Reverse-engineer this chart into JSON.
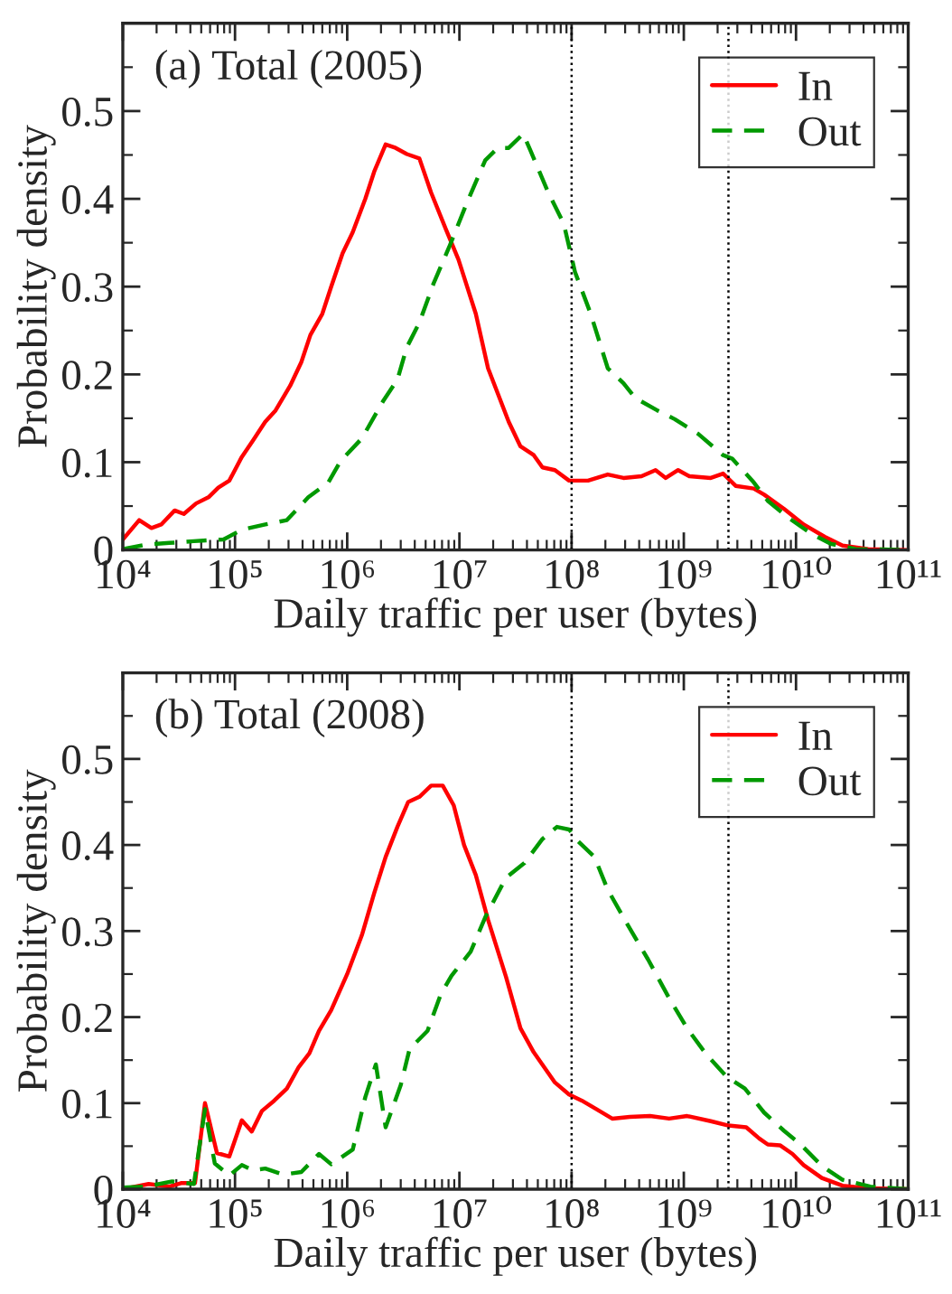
{
  "chart_data": [
    {
      "type": "line",
      "title": "(a) Total (2005)",
      "xlabel": "Daily traffic per user (bytes)",
      "ylabel": "Probability density",
      "log": "x",
      "grid": false,
      "legend": "top right",
      "xlim": [
        10000.0,
        100000000000.0
      ],
      "ylim": [
        0,
        0.6
      ],
      "xticks": [
        {
          "value": 10000.0,
          "label": "10⁴"
        },
        {
          "value": 100000.0,
          "label": "10⁵"
        },
        {
          "value": 1000000.0,
          "label": "10⁶"
        },
        {
          "value": 10000000.0,
          "label": "10⁷"
        },
        {
          "value": 100000000.0,
          "label": "10⁸"
        },
        {
          "value": 1000000000.0,
          "label": "10⁹"
        },
        {
          "value": 10000000000.0,
          "label": "10¹⁰"
        },
        {
          "value": 100000000000.0,
          "label": "10¹¹"
        }
      ],
      "yticks": [
        0,
        0.1,
        0.2,
        0.3,
        0.4,
        0.5
      ],
      "ref_lines": [
        {
          "axis": "x",
          "value": 100000000.0,
          "line_style": "dotted",
          "color": "#000000"
        },
        {
          "axis": "x",
          "value": 2500000000.0,
          "line_style": "dotted",
          "color": "#000000"
        }
      ],
      "series": [
        {
          "name": "In",
          "color": "#ff0000",
          "line_style": "solid",
          "x": [
            10000.0,
            14000.0,
            18000.0,
            22000.0,
            29000.0,
            35000.0,
            45000.0,
            58000.0,
            71000.0,
            89000.0,
            115000.0,
            145000.0,
            186000.0,
            230000.0,
            310000.0,
            390000.0,
            470000.0,
            600000.0,
            720000.0,
            910000.0,
            1120000.0,
            1450000.0,
            1740000.0,
            2200000.0,
            2700000.0,
            3400000.0,
            4400000.0,
            5600000.0,
            7600000.0,
            9800000.0,
            14000000.0,
            18000000.0,
            27500000.0,
            35000000.0,
            46000000.0,
            55000000.0,
            71000000.0,
            95000000.0,
            140000000.0,
            210000000.0,
            290000000.0,
            420000000.0,
            560000000.0,
            690000000.0,
            890000000.0,
            1120000000.0,
            1740000000.0,
            2240000000.0,
            2900000000.0,
            4200000000.0,
            5200000000.0,
            7800000000.0,
            11700000000.0,
            18000000000.0,
            26000000000.0,
            44000000000.0,
            100000000000.0
          ],
          "values": [
            0.012,
            0.034,
            0.025,
            0.029,
            0.045,
            0.041,
            0.053,
            0.06,
            0.071,
            0.079,
            0.106,
            0.125,
            0.146,
            0.159,
            0.187,
            0.214,
            0.245,
            0.269,
            0.3,
            0.338,
            0.362,
            0.4,
            0.431,
            0.462,
            0.458,
            0.451,
            0.446,
            0.407,
            0.365,
            0.331,
            0.269,
            0.207,
            0.146,
            0.118,
            0.108,
            0.094,
            0.091,
            0.079,
            0.079,
            0.086,
            0.082,
            0.084,
            0.091,
            0.082,
            0.091,
            0.084,
            0.082,
            0.087,
            0.073,
            0.07,
            0.063,
            0.047,
            0.029,
            0.015,
            0.005,
            0.001,
            0
          ]
        },
        {
          "name": "Out",
          "color": "#009900",
          "line_style": "dashed",
          "x": [
            10000.0,
            16000.0,
            26000.0,
            43000.0,
            79000.0,
            115000.0,
            186000.0,
            290000.0,
            450000.0,
            680000.0,
            870000.0,
            1350000.0,
            2100000.0,
            2800000.0,
            3400000.0,
            4400000.0,
            5900000.0,
            8100000.0,
            11700000.0,
            17000000.0,
            22000000.0,
            27500000.0,
            37000000.0,
            43000000.0,
            62000000.0,
            85000000.0,
            107000000.0,
            148000000.0,
            210000000.0,
            290000000.0,
            370000000.0,
            580000000.0,
            830000000.0,
            1350000000.0,
            2240000000.0,
            2700000000.0,
            4200000000.0,
            5600000000.0,
            8700000000.0,
            13500000000.0,
            20400000000.0,
            34000000000.0,
            100000000000.0
          ],
          "values": [
            0.001,
            0.006,
            0.008,
            0.01,
            0.012,
            0.023,
            0.029,
            0.034,
            0.06,
            0.077,
            0.101,
            0.127,
            0.17,
            0.194,
            0.231,
            0.259,
            0.304,
            0.345,
            0.396,
            0.444,
            0.458,
            0.458,
            0.474,
            0.455,
            0.407,
            0.372,
            0.317,
            0.269,
            0.207,
            0.19,
            0.173,
            0.159,
            0.149,
            0.132,
            0.108,
            0.104,
            0.077,
            0.056,
            0.036,
            0.019,
            0.007,
            0.001,
            0
          ]
        }
      ]
    },
    {
      "type": "line",
      "title": "(b) Total (2008)",
      "xlabel": "Daily traffic per user (bytes)",
      "ylabel": "Probability density",
      "log": "x",
      "grid": false,
      "legend": "top right",
      "xlim": [
        10000.0,
        100000000000.0
      ],
      "ylim": [
        0,
        0.6
      ],
      "xticks": [
        {
          "value": 10000.0,
          "label": "10⁴"
        },
        {
          "value": 100000.0,
          "label": "10⁵"
        },
        {
          "value": 1000000.0,
          "label": "10⁶"
        },
        {
          "value": 10000000.0,
          "label": "10⁷"
        },
        {
          "value": 100000000.0,
          "label": "10⁸"
        },
        {
          "value": 1000000000.0,
          "label": "10⁹"
        },
        {
          "value": 10000000000.0,
          "label": "10¹⁰"
        },
        {
          "value": 100000000000.0,
          "label": "10¹¹"
        }
      ],
      "yticks": [
        0,
        0.1,
        0.2,
        0.3,
        0.4,
        0.5
      ],
      "ref_lines": [
        {
          "axis": "x",
          "value": 100000000.0,
          "line_style": "dotted",
          "color": "#000000"
        },
        {
          "axis": "x",
          "value": 2500000000.0,
          "line_style": "dotted",
          "color": "#000000"
        }
      ],
      "series": [
        {
          "name": "In",
          "color": "#ff0000",
          "line_style": "solid",
          "x": [
            10000.0,
            17000.0,
            26000.0,
            33000.0,
            44000.0,
            54000.0,
            69000.0,
            89000.0,
            115000.0,
            141000.0,
            174000.0,
            224000.0,
            290000.0,
            370000.0,
            460000.0,
            560000.0,
            720000.0,
            1000000.0,
            1350000.0,
            1740000.0,
            2200000.0,
            2800000.0,
            3500000.0,
            4400000.0,
            5600000.0,
            7100000.0,
            8900000.0,
            11000000.0,
            14000000.0,
            18000000.0,
            26000000.0,
            35000000.0,
            46000000.0,
            71000000.0,
            95000000.0,
            123000000.0,
            166000000.0,
            230000000.0,
            330000000.0,
            500000000.0,
            740000000.0,
            1070000000.0,
            1740000000.0,
            2500000000.0,
            3600000000.0,
            4700000000.0,
            5600000000.0,
            7200000000.0,
            9300000000.0,
            11700000000.0,
            17000000000.0,
            26000000000.0,
            44000000000.0,
            100000000000.0
          ],
          "values": [
            0,
            0.006,
            0.003,
            0.007,
            0.007,
            0.1,
            0.042,
            0.038,
            0.08,
            0.067,
            0.091,
            0.103,
            0.117,
            0.142,
            0.158,
            0.184,
            0.208,
            0.25,
            0.295,
            0.344,
            0.386,
            0.421,
            0.45,
            0.456,
            0.469,
            0.469,
            0.446,
            0.4,
            0.365,
            0.313,
            0.247,
            0.187,
            0.159,
            0.124,
            0.11,
            0.103,
            0.093,
            0.082,
            0.084,
            0.085,
            0.082,
            0.085,
            0.079,
            0.074,
            0.072,
            0.059,
            0.052,
            0.051,
            0.041,
            0.028,
            0.013,
            0.004,
            0.001,
            0
          ]
        },
        {
          "name": "Out",
          "color": "#009900",
          "line_style": "dashed",
          "x": [
            10000.0,
            16000.0,
            27500.0,
            43000.0,
            54000.0,
            66000.0,
            89000.0,
            115000.0,
            145000.0,
            186000.0,
            270000.0,
            390000.0,
            560000.0,
            720000.0,
            1120000.0,
            1450000.0,
            1800000.0,
            2200000.0,
            3000000.0,
            3600000.0,
            5200000.0,
            6800000.0,
            8500000.0,
            12600000.0,
            17000000.0,
            26000000.0,
            38000000.0,
            55000000.0,
            74000000.0,
            95000000.0,
            115000000.0,
            160000000.0,
            210000000.0,
            310000000.0,
            480000000.0,
            740000000.0,
            1070000000.0,
            1600000000.0,
            2400000000.0,
            3500000000.0,
            5200000000.0,
            7800000000.0,
            11200000000.0,
            17000000000.0,
            26000000000.0,
            46000000000.0,
            100000000000.0
          ],
          "values": [
            0.002,
            0.003,
            0.009,
            0.006,
            0.093,
            0.03,
            0.016,
            0.028,
            0.022,
            0.024,
            0.017,
            0.02,
            0.041,
            0.029,
            0.046,
            0.107,
            0.145,
            0.072,
            0.121,
            0.163,
            0.184,
            0.226,
            0.248,
            0.276,
            0.316,
            0.362,
            0.379,
            0.407,
            0.421,
            0.418,
            0.404,
            0.386,
            0.348,
            0.309,
            0.267,
            0.222,
            0.187,
            0.156,
            0.131,
            0.117,
            0.089,
            0.068,
            0.051,
            0.027,
            0.011,
            0.003,
            0
          ]
        }
      ]
    }
  ]
}
